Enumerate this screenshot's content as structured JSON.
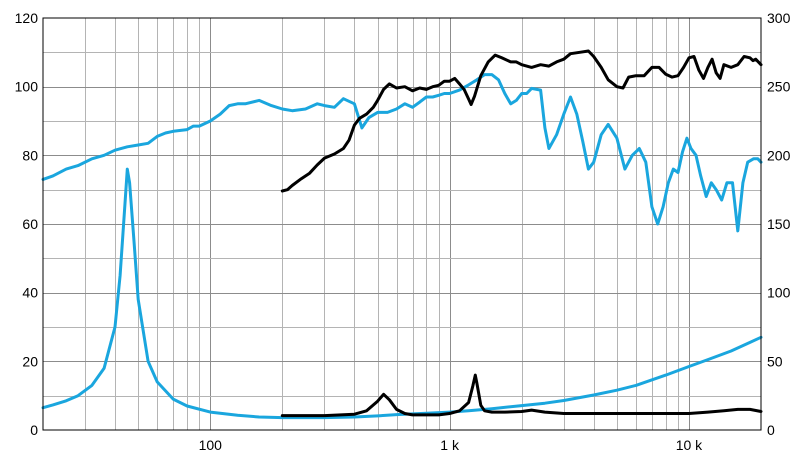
{
  "chart_data": {
    "type": "line",
    "title": "",
    "xlabel": "",
    "ylabel": "",
    "x_scale": "log",
    "xlim": [
      20,
      20000
    ],
    "ylim_left": [
      0,
      120
    ],
    "ylim_right": [
      0,
      300
    ],
    "grid": true,
    "x_tick_labels": [
      {
        "value": 100,
        "label": "100"
      },
      {
        "value": 1000,
        "label": "1 k"
      },
      {
        "value": 10000,
        "label": "10 k"
      }
    ],
    "y_left_ticks": [
      {
        "value": 0,
        "label": "0"
      },
      {
        "value": 20,
        "label": "20"
      },
      {
        "value": 40,
        "label": "40"
      },
      {
        "value": 60,
        "label": "60"
      },
      {
        "value": 80,
        "label": "80"
      },
      {
        "value": 100,
        "label": "100"
      },
      {
        "value": 120,
        "label": "120"
      }
    ],
    "y_right_ticks": [
      {
        "value": 0,
        "label": "0"
      },
      {
        "value": 50,
        "label": "50"
      },
      {
        "value": 100,
        "label": "100"
      },
      {
        "value": 150,
        "label": "150"
      },
      {
        "value": 200,
        "label": "200"
      },
      {
        "value": 250,
        "label": "250"
      },
      {
        "value": 300,
        "label": "300"
      }
    ],
    "series": [
      {
        "color": "#1aa6de",
        "axis": "left",
        "points": [
          [
            20,
            73
          ],
          [
            22,
            74
          ],
          [
            25,
            76
          ],
          [
            28,
            77
          ],
          [
            32,
            79
          ],
          [
            36,
            80
          ],
          [
            40,
            81.5
          ],
          [
            45,
            82.5
          ],
          [
            50,
            83
          ],
          [
            55,
            83.5
          ],
          [
            60,
            85.5
          ],
          [
            65,
            86.5
          ],
          [
            70,
            87
          ],
          [
            80,
            87.5
          ],
          [
            85,
            88.5
          ],
          [
            90,
            88.5
          ],
          [
            100,
            90
          ],
          [
            110,
            92
          ],
          [
            120,
            94.5
          ],
          [
            130,
            95
          ],
          [
            140,
            95
          ],
          [
            160,
            96
          ],
          [
            180,
            94.5
          ],
          [
            200,
            93.5
          ],
          [
            220,
            93
          ],
          [
            250,
            93.5
          ],
          [
            280,
            95
          ],
          [
            300,
            94.5
          ],
          [
            330,
            94
          ],
          [
            360,
            96.5
          ],
          [
            400,
            95
          ],
          [
            430,
            88
          ],
          [
            460,
            91
          ],
          [
            500,
            92.5
          ],
          [
            550,
            92.5
          ],
          [
            600,
            93.5
          ],
          [
            650,
            95
          ],
          [
            700,
            94
          ],
          [
            750,
            95.5
          ],
          [
            800,
            97
          ],
          [
            850,
            97
          ],
          [
            900,
            97.5
          ],
          [
            950,
            98
          ],
          [
            1000,
            98
          ],
          [
            1100,
            99
          ],
          [
            1200,
            100.5
          ],
          [
            1300,
            102
          ],
          [
            1400,
            103.5
          ],
          [
            1500,
            103.5
          ],
          [
            1600,
            102
          ],
          [
            1700,
            98
          ],
          [
            1800,
            95
          ],
          [
            1900,
            96
          ],
          [
            2000,
            98
          ],
          [
            2100,
            98
          ],
          [
            2200,
            99.5
          ],
          [
            2400,
            99
          ],
          [
            2500,
            88
          ],
          [
            2600,
            82
          ],
          [
            2800,
            86
          ],
          [
            3000,
            92
          ],
          [
            3200,
            97
          ],
          [
            3400,
            92
          ],
          [
            3600,
            84
          ],
          [
            3800,
            76
          ],
          [
            4000,
            78
          ],
          [
            4300,
            86
          ],
          [
            4600,
            89
          ],
          [
            5000,
            85
          ],
          [
            5400,
            76
          ],
          [
            5800,
            80
          ],
          [
            6200,
            82
          ],
          [
            6600,
            78
          ],
          [
            7000,
            65
          ],
          [
            7400,
            60
          ],
          [
            7800,
            65
          ],
          [
            8200,
            72
          ],
          [
            8600,
            76
          ],
          [
            9000,
            75
          ],
          [
            9400,
            81
          ],
          [
            9800,
            85
          ],
          [
            10200,
            82
          ],
          [
            10700,
            80
          ],
          [
            11200,
            74
          ],
          [
            11800,
            68
          ],
          [
            12400,
            72
          ],
          [
            13000,
            70
          ],
          [
            13700,
            67
          ],
          [
            14400,
            72
          ],
          [
            15200,
            72
          ],
          [
            16000,
            58
          ],
          [
            16800,
            72
          ],
          [
            17600,
            78
          ],
          [
            18600,
            79
          ],
          [
            19400,
            79
          ],
          [
            20000,
            78
          ]
        ]
      },
      {
        "color": "#1aa6de",
        "axis": "left",
        "points": [
          [
            20,
            6.5
          ],
          [
            22,
            7.3
          ],
          [
            25,
            8.5
          ],
          [
            28,
            10
          ],
          [
            32,
            13
          ],
          [
            36,
            18
          ],
          [
            40,
            30
          ],
          [
            42,
            45
          ],
          [
            44,
            66
          ],
          [
            45,
            76
          ],
          [
            46,
            72
          ],
          [
            48,
            55
          ],
          [
            50,
            38
          ],
          [
            55,
            20
          ],
          [
            60,
            14
          ],
          [
            70,
            9
          ],
          [
            80,
            7
          ],
          [
            100,
            5.2
          ],
          [
            130,
            4.3
          ],
          [
            160,
            3.8
          ],
          [
            200,
            3.6
          ],
          [
            300,
            3.6
          ],
          [
            400,
            3.8
          ],
          [
            500,
            4.1
          ],
          [
            600,
            4.5
          ],
          [
            800,
            4.9
          ],
          [
            1000,
            5.2
          ],
          [
            1200,
            5.6
          ],
          [
            1500,
            6.2
          ],
          [
            2000,
            7.1
          ],
          [
            2500,
            7.8
          ],
          [
            3000,
            8.6
          ],
          [
            4000,
            10.2
          ],
          [
            5000,
            11.6
          ],
          [
            6000,
            13
          ],
          [
            8000,
            16
          ],
          [
            10000,
            18.5
          ],
          [
            12000,
            20.5
          ],
          [
            15000,
            23
          ],
          [
            18000,
            25.5
          ],
          [
            20000,
            27
          ]
        ]
      },
      {
        "color": "#000000",
        "axis": "right",
        "points": [
          [
            200,
            174
          ],
          [
            210,
            175
          ],
          [
            220,
            178
          ],
          [
            240,
            183
          ],
          [
            260,
            187
          ],
          [
            280,
            193
          ],
          [
            300,
            198
          ],
          [
            330,
            201
          ],
          [
            360,
            205
          ],
          [
            380,
            211
          ],
          [
            400,
            222
          ],
          [
            420,
            227
          ],
          [
            450,
            230
          ],
          [
            480,
            235
          ],
          [
            500,
            240
          ],
          [
            530,
            248
          ],
          [
            560,
            252
          ],
          [
            600,
            249
          ],
          [
            650,
            250
          ],
          [
            700,
            247
          ],
          [
            750,
            249
          ],
          [
            800,
            248
          ],
          [
            850,
            250
          ],
          [
            900,
            251
          ],
          [
            950,
            254
          ],
          [
            1000,
            254
          ],
          [
            1050,
            256
          ],
          [
            1100,
            252
          ],
          [
            1150,
            248
          ],
          [
            1200,
            241
          ],
          [
            1230,
            237
          ],
          [
            1270,
            243
          ],
          [
            1350,
            258
          ],
          [
            1450,
            268
          ],
          [
            1550,
            273
          ],
          [
            1650,
            271
          ],
          [
            1800,
            268
          ],
          [
            1900,
            268
          ],
          [
            2000,
            266
          ],
          [
            2200,
            264
          ],
          [
            2400,
            266
          ],
          [
            2600,
            265
          ],
          [
            2800,
            268
          ],
          [
            3000,
            270
          ],
          [
            3200,
            274
          ],
          [
            3500,
            275
          ],
          [
            3800,
            276
          ],
          [
            4000,
            272
          ],
          [
            4300,
            264
          ],
          [
            4600,
            255
          ],
          [
            5000,
            250
          ],
          [
            5300,
            249
          ],
          [
            5600,
            257
          ],
          [
            6000,
            258
          ],
          [
            6500,
            258
          ],
          [
            7000,
            264
          ],
          [
            7500,
            264
          ],
          [
            8000,
            259
          ],
          [
            8500,
            257
          ],
          [
            9000,
            258
          ],
          [
            9500,
            264
          ],
          [
            10000,
            271
          ],
          [
            10500,
            272
          ],
          [
            11000,
            262
          ],
          [
            11500,
            256
          ],
          [
            12000,
            264
          ],
          [
            12500,
            270
          ],
          [
            13000,
            260
          ],
          [
            13500,
            256
          ],
          [
            14000,
            266
          ],
          [
            15000,
            264
          ],
          [
            16000,
            266
          ],
          [
            17000,
            272
          ],
          [
            18000,
            271
          ],
          [
            18500,
            269
          ],
          [
            19000,
            270
          ],
          [
            20000,
            266
          ]
        ]
      },
      {
        "color": "#000000",
        "axis": "right",
        "points": [
          [
            200,
            10.5
          ],
          [
            300,
            10.5
          ],
          [
            400,
            11.5
          ],
          [
            450,
            14
          ],
          [
            500,
            21
          ],
          [
            530,
            26
          ],
          [
            560,
            22
          ],
          [
            600,
            15
          ],
          [
            650,
            12
          ],
          [
            700,
            11
          ],
          [
            800,
            11
          ],
          [
            900,
            11
          ],
          [
            1000,
            12
          ],
          [
            1100,
            14
          ],
          [
            1200,
            20
          ],
          [
            1250,
            32
          ],
          [
            1280,
            40
          ],
          [
            1300,
            34
          ],
          [
            1350,
            18
          ],
          [
            1400,
            14
          ],
          [
            1500,
            13
          ],
          [
            1700,
            13
          ],
          [
            2000,
            13.5
          ],
          [
            2200,
            14.5
          ],
          [
            2500,
            13
          ],
          [
            3000,
            12
          ],
          [
            4000,
            12
          ],
          [
            6000,
            12
          ],
          [
            8000,
            12
          ],
          [
            10000,
            12
          ],
          [
            12000,
            13
          ],
          [
            14000,
            14
          ],
          [
            16000,
            15
          ],
          [
            18000,
            15
          ],
          [
            20000,
            13.5
          ]
        ]
      }
    ]
  }
}
